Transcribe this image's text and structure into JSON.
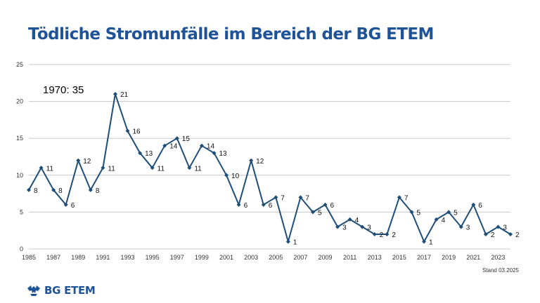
{
  "page": {
    "title": "Tödliche Stromunfälle im Bereich der BG ETEM"
  },
  "annotation": "1970: 35",
  "stand": "Stand 03.2025",
  "logo": {
    "text": "BG ETEM"
  },
  "colors": {
    "series": "#1f4e79",
    "title": "#1f5398",
    "grid": "#c8c8c8"
  },
  "chart_data": {
    "type": "line",
    "title": "Tödliche Stromunfälle im Bereich der BG ETEM",
    "xlabel": "",
    "ylabel": "",
    "x": [
      1985,
      1986,
      1987,
      1988,
      1989,
      1990,
      1991,
      1992,
      1993,
      1994,
      1995,
      1996,
      1997,
      1998,
      1999,
      2000,
      2001,
      2002,
      2003,
      2004,
      2005,
      2006,
      2007,
      2008,
      2009,
      2010,
      2011,
      2012,
      2013,
      2014,
      2015,
      2016,
      2017,
      2018,
      2019,
      2020,
      2021,
      2022,
      2023,
      2024
    ],
    "values": [
      8,
      11,
      8,
      6,
      12,
      8,
      11,
      21,
      16,
      13,
      11,
      14,
      15,
      11,
      14,
      13,
      10,
      6,
      12,
      6,
      7,
      1,
      7,
      5,
      6,
      3,
      4,
      3,
      2,
      2,
      7,
      5,
      1,
      4,
      5,
      3,
      6,
      2,
      3,
      2
    ],
    "x_ticks": [
      "1985",
      "1987",
      "1989",
      "1991",
      "1993",
      "1995",
      "1997",
      "1999",
      "2001",
      "2003",
      "2005",
      "2007",
      "2009",
      "2011",
      "2013",
      "2015",
      "2017",
      "2019",
      "2021",
      "2023"
    ],
    "y_ticks": [
      "0",
      "5",
      "10",
      "15",
      "20",
      "25"
    ],
    "ylim": [
      0,
      25
    ],
    "grid": "horizontal"
  }
}
